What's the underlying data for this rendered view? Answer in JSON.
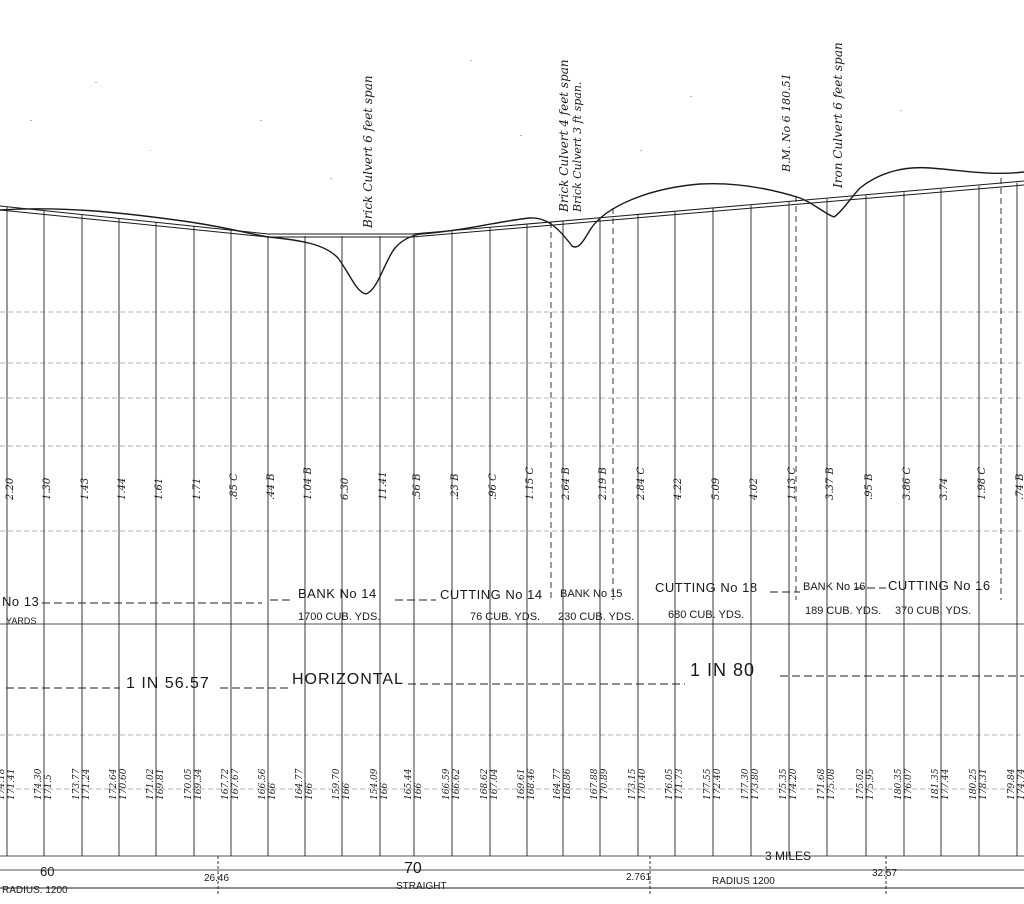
{
  "structures": [
    {
      "label": "Brick Culvert 6 feet span"
    },
    {
      "label": "Brick Culvert 4 feet span"
    },
    {
      "label": "Brick Culvert 3 ft span."
    },
    {
      "label": "B.M. No 6  180.51"
    },
    {
      "label": "Iron Culvert 6 feet span"
    }
  ],
  "cut_fill_depths": [
    "2.20",
    "1.30",
    "1.43",
    "1.44",
    "1.61",
    "1.71",
    ".85 C",
    ".44 B",
    "1.04 B",
    "6.30",
    "11.41",
    ".56 B",
    ".23 B",
    ".96 C",
    "1.15 C",
    "2.64 B",
    "2.19 B",
    "2.84 C",
    "4.22",
    "5.09",
    "4.02",
    "1.13 C",
    "3.37 B",
    ".95 B",
    "3.86 C",
    "3.74",
    "1.98 C",
    ".74 B"
  ],
  "works": [
    {
      "name": "No 13",
      "quantity": "YARDS"
    },
    {
      "name": "BANK No 14",
      "quantity": "1700 CUB. YDS."
    },
    {
      "name": "CUTTING No 14",
      "quantity": "76 CUB. YDS."
    },
    {
      "name": "BANK No 15",
      "quantity": "230 CUB. YDS."
    },
    {
      "name": "CUTTING No 18",
      "quantity": "680 CUB. YDS."
    },
    {
      "name": "BANK No 16",
      "quantity": "189 CUB. YDS."
    },
    {
      "name": "CUTTING No 16",
      "quantity": "370 CUB. YDS."
    }
  ],
  "gradients": [
    "1 IN 56.57",
    "HORIZONTAL",
    "1 IN 80"
  ],
  "levels": [
    {
      "ground": "174.18",
      "formation": "171.41"
    },
    {
      "ground": "174.30",
      "formation": "171.5"
    },
    {
      "ground": "173.77",
      "formation": "171.24"
    },
    {
      "ground": "172.64",
      "formation": "170.60"
    },
    {
      "ground": "171.02",
      "formation": "169.81"
    },
    {
      "ground": "170.05",
      "formation": "169.34"
    },
    {
      "ground": "167.72",
      "formation": "167.67"
    },
    {
      "ground": "166.56",
      "formation": "166"
    },
    {
      "ground": "164.77",
      "formation": "166"
    },
    {
      "ground": "159.70",
      "formation": "166"
    },
    {
      "ground": "154.09",
      "formation": "166"
    },
    {
      "ground": "165.44",
      "formation": "166"
    },
    {
      "ground": "166.59",
      "formation": "166.62"
    },
    {
      "ground": "168.62",
      "formation": "167.04"
    },
    {
      "ground": "169.61",
      "formation": "168.46"
    },
    {
      "ground": "164.77",
      "formation": "168.86"
    },
    {
      "ground": "167.88",
      "formation": "170.89"
    },
    {
      "ground": "173.15",
      "formation": "170.40"
    },
    {
      "ground": "176.05",
      "formation": "171.73"
    },
    {
      "ground": "177.55",
      "formation": "172.40"
    },
    {
      "ground": "177.30",
      "formation": "173.80"
    },
    {
      "ground": "175.35",
      "formation": "174.20"
    },
    {
      "ground": "171.68",
      "formation": "175.08"
    },
    {
      "ground": "175.02",
      "formation": "175.95"
    },
    {
      "ground": "180.35",
      "formation": "176.07"
    },
    {
      "ground": "181.35",
      "formation": "177.44"
    },
    {
      "ground": "180.25",
      "formation": "178.31"
    },
    {
      "ground": "179.84",
      "formation": "174.74"
    }
  ],
  "distance_marks": [
    "60",
    "70",
    "3 MILES"
  ],
  "alignment": [
    {
      "label": "RADIUS. 1200"
    },
    {
      "label": "26.46"
    },
    {
      "label": "STRAIGHT"
    },
    {
      "label": "2.761"
    },
    {
      "label": "RADIUS 1200"
    },
    {
      "label": "32.57"
    }
  ]
}
